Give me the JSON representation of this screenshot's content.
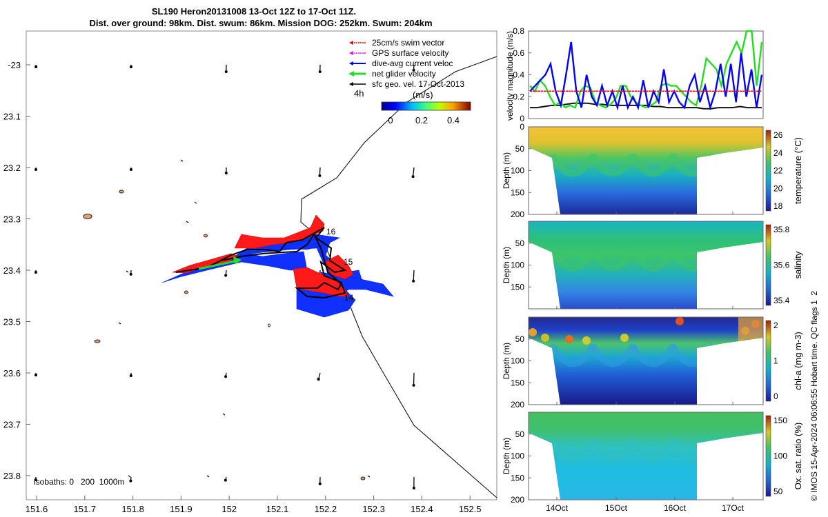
{
  "header": {
    "title_line1": "SL190 Heron20131008 13-Oct 12Z to 17-Oct 11Z.",
    "title_line2": "Dist. over ground: 98km. Dist. swum: 86km. Mission DOG: 252km. Swum: 204km"
  },
  "footer": {
    "credit": "© IMOS 15-Apr-2024 06:06:55 Hobart time. QC flags 1  2"
  },
  "map": {
    "x_ticks": [
      "151.6",
      "151.7",
      "151.8",
      "151.9",
      "152",
      "152.1",
      "152.2",
      "152.3",
      "152.4",
      "152.5"
    ],
    "y_ticks": [
      "-23",
      "23.1",
      "23.2",
      "23.3",
      "23.4",
      "23.5",
      "23.6",
      "23.7",
      "23.8"
    ],
    "isobaths_label": "isobaths: 0   200  1000m",
    "day_markers": [
      "16",
      "15",
      "14"
    ],
    "legend": [
      {
        "label": "25cm/s swim vector",
        "color": "#ff0000"
      },
      {
        "label": "GPS surface velocity",
        "color": "#ff00ff"
      },
      {
        "label": "dive-avg current veloc",
        "color": "#0000ff"
      },
      {
        "label": "net glider velocity",
        "color": "#00dd00"
      },
      {
        "label": "sfc geo. vel. 17-Oct-2013",
        "color": "#000000"
      }
    ],
    "interval_label": "4h",
    "colorbar_unit": "(m/s)",
    "colorbar_ticks": [
      "0",
      "0.2",
      "0.4"
    ]
  },
  "chart_data": [
    {
      "type": "line",
      "title": "",
      "ylabel": "velocity magnitude (m/s)",
      "ylim": [
        0,
        0.8
      ],
      "yticks": [
        "0",
        "0.2",
        "0.4",
        "0.6",
        "0.8"
      ],
      "xlim_days": [
        13.5,
        17.5
      ],
      "series": [
        {
          "name": "net glider velocity",
          "color": "#22dd22",
          "values": [
            0.3,
            0.25,
            0.35,
            0.3,
            0.2,
            0.12,
            0.15,
            0.1,
            0.12,
            0.1,
            0.25,
            0.3,
            0.28,
            0.15,
            0.12,
            0.1,
            0.13,
            0.18,
            0.3,
            0.3,
            0.2,
            0.15,
            0.12,
            0.1,
            0.12,
            0.15,
            0.3,
            0.32,
            0.3,
            0.3,
            0.25,
            0.2,
            0.15,
            0.12,
            0.3,
            0.55,
            0.5,
            0.45,
            0.3,
            0.5,
            0.6,
            0.7,
            0.6,
            0.8,
            0.8,
            0.3,
            0.7
          ]
        },
        {
          "name": "dive-avg current veloc",
          "color": "#0000ff",
          "values": [
            0.25,
            0.3,
            0.35,
            0.4,
            0.5,
            0.25,
            0.12,
            0.4,
            0.7,
            0.25,
            0.1,
            0.4,
            0.2,
            0.12,
            0.3,
            0.12,
            0.25,
            0.1,
            0.3,
            0.1,
            0.2,
            0.1,
            0.35,
            0.1,
            0.25,
            0.15,
            0.45,
            0.15,
            0.25,
            0.15,
            0.1,
            0.3,
            0.4,
            0.15,
            0.3,
            0.1,
            0.25,
            0.5,
            0.2,
            0.5,
            0.15,
            0.6,
            0.2,
            0.45,
            0.1,
            0.4
          ]
        },
        {
          "name": "25cm/s swim vector",
          "color": "#ff0000",
          "values": [
            0.25,
            0.25
          ]
        },
        {
          "name": "sfc geo. vel. 17-Oct-2013",
          "color": "#111111",
          "values": [
            0.1,
            0.1,
            0.11,
            0.12,
            0.12,
            0.13,
            0.14,
            0.14,
            0.14,
            0.13,
            0.13,
            0.12,
            0.12,
            0.12,
            0.12,
            0.12,
            0.12,
            0.11,
            0.11,
            0.1,
            0.1,
            0.1,
            0.1,
            0.1,
            0.09,
            0.09,
            0.1,
            0.1,
            0.1,
            0.11,
            0.1,
            0.1,
            0.1
          ]
        }
      ]
    },
    {
      "type": "heatmap",
      "ylabel": "Depth (m)",
      "ylim": [
        0,
        200
      ],
      "yticks": [
        "0",
        "50",
        "100",
        "150",
        "200"
      ],
      "colorbar_label": "temperature (°C)",
      "colorbar_ticks": [
        "18",
        "20",
        "22",
        "24",
        "26"
      ],
      "colormap": "parula"
    },
    {
      "type": "heatmap",
      "ylabel": "Depth (m)",
      "ylim": [
        0,
        200
      ],
      "yticks": [
        "",
        "50",
        "100",
        "150",
        ""
      ],
      "colorbar_label": "salinity",
      "colorbar_ticks": [
        "35.4",
        "35.6",
        "35.8"
      ],
      "colormap": "parula"
    },
    {
      "type": "heatmap",
      "ylabel": "Depth (m)",
      "ylim": [
        0,
        200
      ],
      "yticks": [
        "",
        "50",
        "100",
        "150",
        "200"
      ],
      "colorbar_label": "chl-a (mg m-3)",
      "colorbar_ticks": [
        "0",
        "1",
        "2"
      ],
      "colormap": "parula"
    },
    {
      "type": "heatmap",
      "ylabel": "Depth (m)",
      "ylim": [
        0,
        200
      ],
      "yticks": [
        "",
        "50",
        "100",
        "150",
        "200"
      ],
      "xticks": [
        "14Oct",
        "15Oct",
        "16Oct",
        "17Oct"
      ],
      "colorbar_label": "Ox. sat. ratio (%)",
      "colorbar_ticks": [
        "50",
        "100",
        "150"
      ],
      "colormap": "parula"
    }
  ]
}
